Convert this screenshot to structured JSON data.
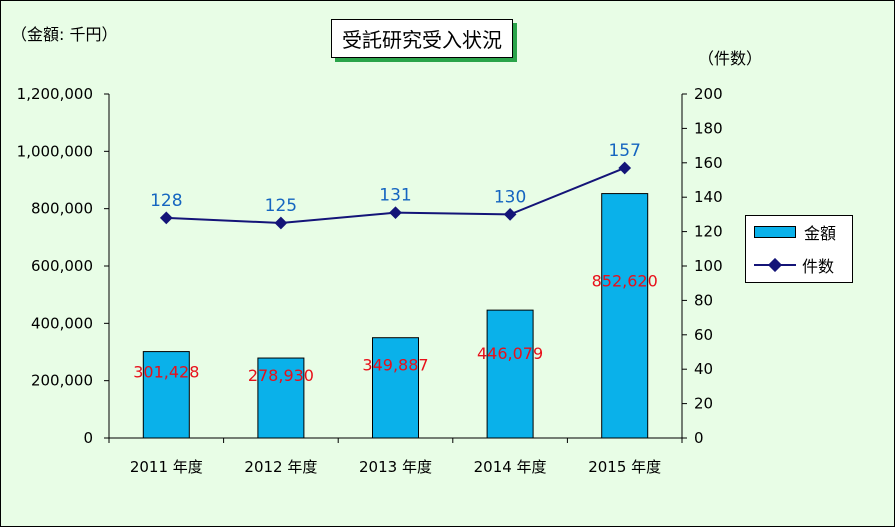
{
  "chart": {
    "title": "受託研究受入状況",
    "unit_left": "（金額: 千円）",
    "unit_right": "（件数）"
  },
  "legend": {
    "bar_label": "金額",
    "line_label": "件数"
  },
  "colors": {
    "bar": "#0ab1ea",
    "line": "#141478",
    "bar_label": "#e8101a",
    "point_label": "#1565c0"
  },
  "chart_data": {
    "type": "bar",
    "categories": [
      "2011 年度",
      "2012 年度",
      "2013 年度",
      "2014 年度",
      "2015 年度"
    ],
    "series": [
      {
        "name": "金額",
        "type": "bar",
        "axis": "left",
        "values": [
          301428,
          278930,
          349887,
          446079,
          852620
        ],
        "labels": [
          "301,428",
          "278,930",
          "349,887",
          "446,079",
          "852,620"
        ]
      },
      {
        "name": "件数",
        "type": "line",
        "axis": "right",
        "values": [
          128,
          125,
          131,
          130,
          157
        ],
        "labels": [
          "128",
          "125",
          "131",
          "130",
          "157"
        ]
      }
    ],
    "ylim_left": [
      0,
      1200000
    ],
    "ylim_right": [
      0,
      200
    ],
    "yticks_left": [
      "0",
      "200,000",
      "400,000",
      "600,000",
      "800,000",
      "1,000,000",
      "1,200,000"
    ],
    "yticks_right": [
      "0",
      "20",
      "40",
      "60",
      "80",
      "100",
      "120",
      "140",
      "160",
      "180",
      "200"
    ],
    "grid": false,
    "legend_position": "right"
  }
}
